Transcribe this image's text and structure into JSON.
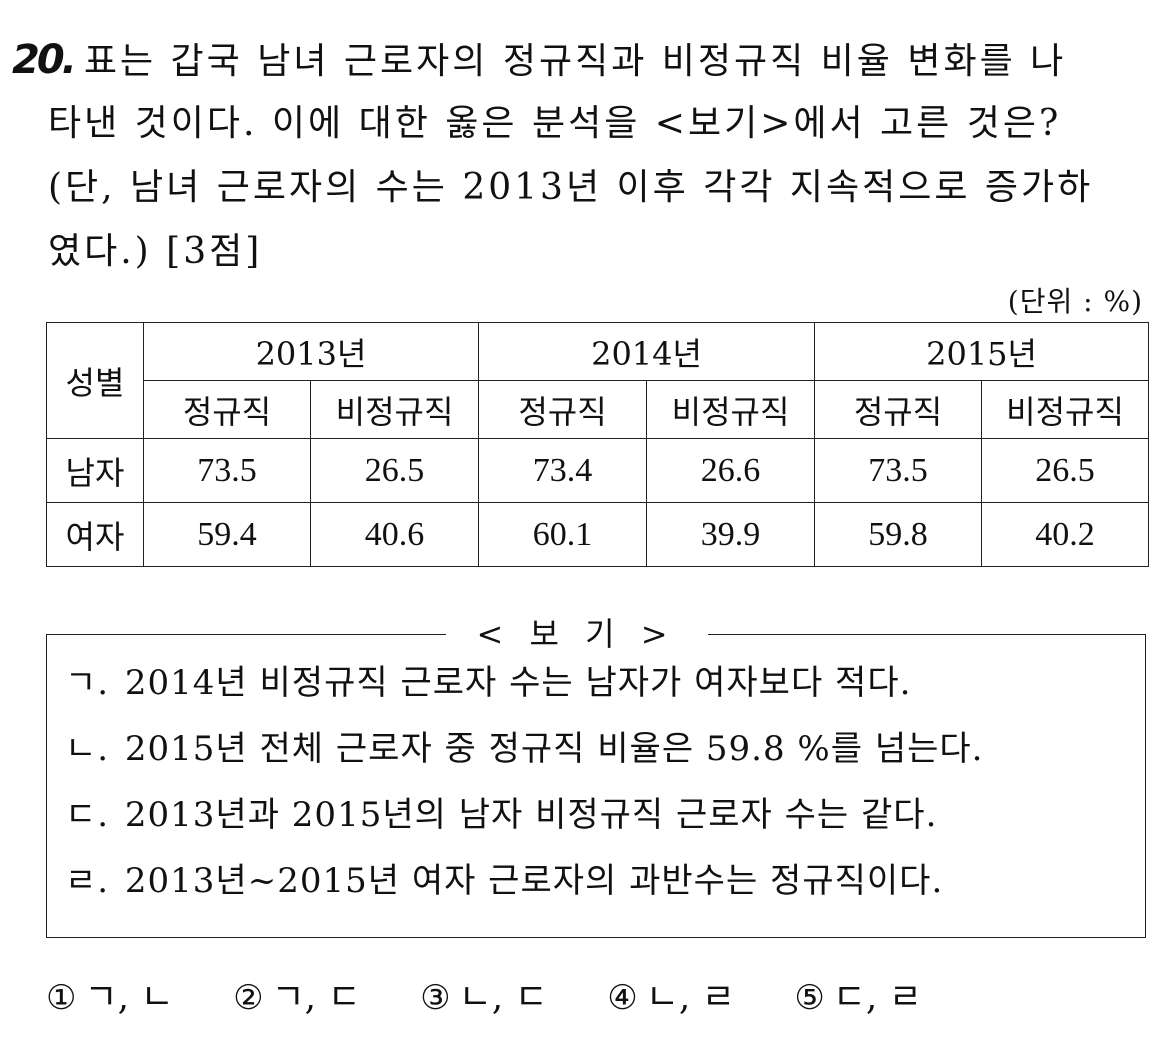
{
  "question": {
    "number": "20.",
    "lines": [
      "표는 갑국 남녀 근로자의 정규직과 비정규직 비율 변화를 나",
      "타낸 것이다. 이에 대한 옳은 분석을 <보기>에서 고른 것은?",
      "(단, 남녀 근로자의 수는 2013년 이후 각각 지속적으로 증가하",
      "였다.) [3점]"
    ]
  },
  "table": {
    "unit": "(단위 : %)",
    "row_header": "성별",
    "years": [
      "2013년",
      "2014년",
      "2015년"
    ],
    "sub_headers": [
      "정규직",
      "비정규직"
    ],
    "rows": [
      {
        "label": "남자",
        "values": [
          "73.5",
          "26.5",
          "73.4",
          "26.6",
          "73.5",
          "26.5"
        ]
      },
      {
        "label": "여자",
        "values": [
          "59.4",
          "40.6",
          "60.1",
          "39.9",
          "59.8",
          "40.2"
        ]
      }
    ]
  },
  "boki": {
    "title": "< 보 기 >",
    "items": [
      {
        "mark": "ㄱ.",
        "text": "2014년 비정규직 근로자 수는 남자가 여자보다 적다."
      },
      {
        "mark": "ㄴ.",
        "text": "2015년 전체 근로자 중 정규직 비율은 59.8 %를 넘는다."
      },
      {
        "mark": "ㄷ.",
        "text": "2013년과 2015년의 남자 비정규직 근로자 수는 같다."
      },
      {
        "mark": "ㄹ.",
        "text": "2013년~2015년 여자 근로자의 과반수는 정규직이다."
      }
    ]
  },
  "choices": [
    {
      "num": "①",
      "text": "ㄱ, ㄴ"
    },
    {
      "num": "②",
      "text": "ㄱ, ㄷ"
    },
    {
      "num": "③",
      "text": "ㄴ, ㄷ"
    },
    {
      "num": "④",
      "text": "ㄴ, ㄹ"
    },
    {
      "num": "⑤",
      "text": "ㄷ, ㄹ"
    }
  ]
}
